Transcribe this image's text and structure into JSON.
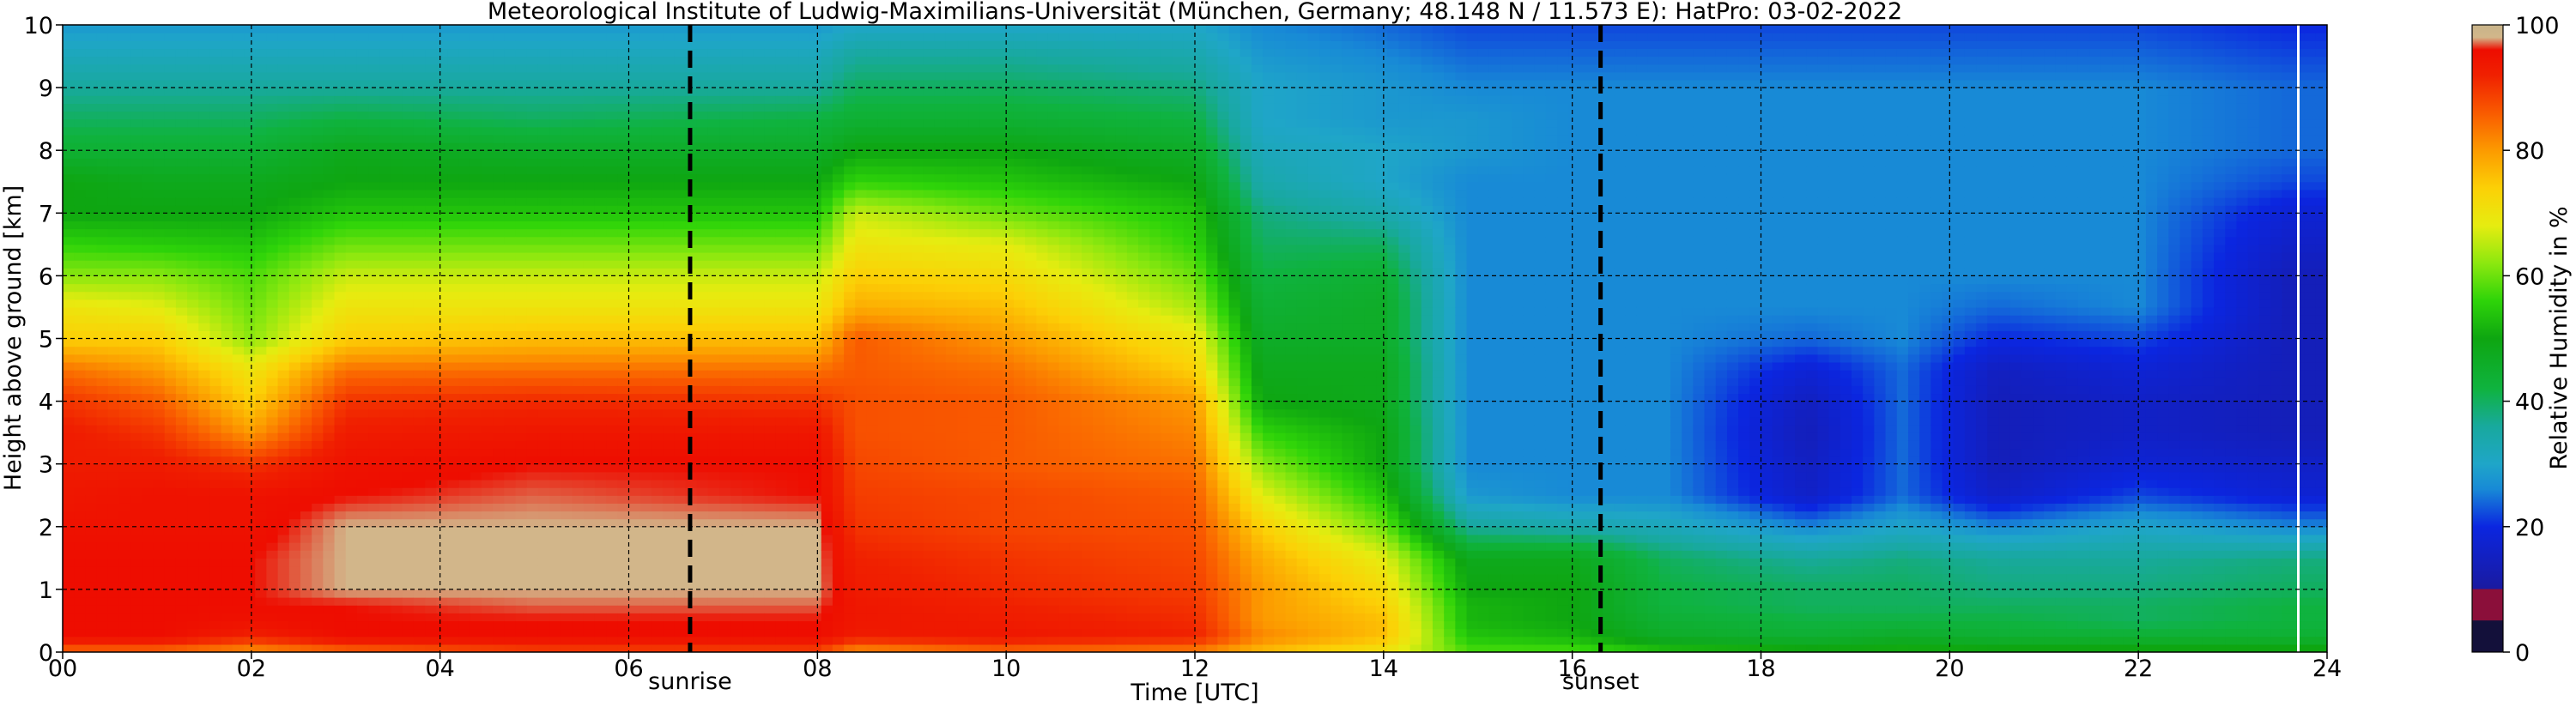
{
  "chart_data": {
    "type": "heatmap",
    "title": "Meteorological Institute of Ludwig-Maximilians-Universität (München, Germany; 48.148 N / 11.573 E):    HatPro: 03-02-2022",
    "xlabel": "Time [UTC]",
    "ylabel": "Height above ground [km]",
    "xlim": [
      0,
      24
    ],
    "ylim": [
      0,
      10
    ],
    "x_ticks": [
      "00",
      "02",
      "04",
      "06",
      "08",
      "10",
      "12",
      "14",
      "16",
      "18",
      "20",
      "22",
      "24"
    ],
    "y_ticks": [
      "0",
      "1",
      "2",
      "3",
      "4",
      "5",
      "6",
      "7",
      "8",
      "9",
      "10"
    ],
    "grid": true,
    "colorbar": {
      "label": "Relative Humidity in %",
      "range": [
        0,
        100
      ],
      "ticks": [
        "0",
        "20",
        "40",
        "60",
        "80",
        "100"
      ]
    },
    "annotations": [
      {
        "name": "sunrise",
        "label": "sunrise",
        "x": 6.65
      },
      {
        "name": "sunset",
        "label": "sunset",
        "x": 16.3
      }
    ],
    "heights_km": [
      0,
      0.25,
      0.5,
      0.75,
      1,
      1.5,
      2,
      2.5,
      3,
      3.5,
      4,
      4.5,
      5,
      5.5,
      6,
      6.5,
      7,
      7.5,
      8,
      8.5,
      9,
      9.5,
      10
    ],
    "profiles": [
      {
        "t": 0.0,
        "rh": [
          84,
          96,
          96,
          96,
          96,
          96,
          95,
          94,
          93,
          93,
          90,
          84,
          74,
          70,
          62,
          56,
          50,
          50,
          44,
          40,
          36,
          32,
          28
        ]
      },
      {
        "t": 1.0,
        "rh": [
          84,
          96,
          96,
          96,
          96,
          96,
          95,
          95,
          93,
          90,
          86,
          80,
          74,
          68,
          62,
          55,
          50,
          48,
          44,
          40,
          36,
          32,
          28
        ]
      },
      {
        "t": 2.0,
        "rh": [
          80,
          92,
          95,
          96,
          96,
          96,
          95,
          95,
          90,
          80,
          74,
          70,
          62,
          60,
          58,
          54,
          50,
          48,
          44,
          40,
          36,
          32,
          28
        ]
      },
      {
        "t": 3.0,
        "rh": [
          84,
          96,
          96,
          96,
          98,
          98,
          98,
          96,
          95,
          93,
          90,
          84,
          74,
          70,
          66,
          60,
          54,
          50,
          48,
          42,
          36,
          32,
          28
        ]
      },
      {
        "t": 5.0,
        "rh": [
          88,
          96,
          96,
          97,
          98,
          98,
          98,
          97,
          96,
          94,
          91,
          84,
          76,
          70,
          66,
          60,
          54,
          50,
          46,
          40,
          36,
          32,
          28
        ]
      },
      {
        "t": 8.0,
        "rh": [
          88,
          96,
          96,
          97,
          98,
          98,
          98,
          96,
          96,
          94,
          90,
          84,
          76,
          70,
          66,
          60,
          54,
          50,
          46,
          42,
          36,
          32,
          28
        ]
      },
      {
        "t": 8.4,
        "rh": [
          80,
          93,
          94,
          94,
          93,
          92,
          90,
          89,
          88,
          87,
          87,
          86,
          86,
          78,
          74,
          70,
          66,
          56,
          50,
          44,
          40,
          36,
          30
        ]
      },
      {
        "t": 10.0,
        "rh": [
          84,
          94,
          93,
          92,
          91,
          90,
          88,
          88,
          86,
          86,
          86,
          84,
          80,
          76,
          72,
          68,
          60,
          54,
          50,
          44,
          40,
          36,
          30
        ]
      },
      {
        "t": 12.0,
        "rh": [
          82,
          92,
          91,
          90,
          89,
          88,
          87,
          86,
          84,
          82,
          80,
          74,
          70,
          64,
          60,
          56,
          54,
          50,
          46,
          42,
          38,
          34,
          30
        ]
      },
      {
        "t": 12.7,
        "rh": [
          76,
          82,
          80,
          80,
          80,
          78,
          74,
          68,
          62,
          56,
          50,
          48,
          46,
          44,
          42,
          40,
          38,
          34,
          32,
          30,
          30,
          28,
          26
        ]
      },
      {
        "t": 14.0,
        "rh": [
          70,
          76,
          76,
          74,
          72,
          68,
          60,
          54,
          50,
          50,
          48,
          48,
          46,
          46,
          44,
          40,
          34,
          30,
          30,
          28,
          28,
          26,
          24
        ]
      },
      {
        "t": 14.9,
        "rh": [
          58,
          54,
          52,
          52,
          50,
          48,
          36,
          28,
          26,
          26,
          26,
          26,
          26,
          26,
          26,
          26,
          26,
          26,
          28,
          28,
          26,
          24,
          22
        ]
      },
      {
        "t": 16.0,
        "rh": [
          58,
          52,
          50,
          50,
          50,
          48,
          34,
          26,
          26,
          26,
          26,
          26,
          26,
          26,
          26,
          26,
          26,
          26,
          26,
          26,
          26,
          24,
          22
        ]
      },
      {
        "t": 17.0,
        "rh": [
          54,
          46,
          44,
          42,
          42,
          40,
          32,
          26,
          26,
          26,
          26,
          26,
          26,
          26,
          26,
          26,
          26,
          26,
          26,
          26,
          26,
          24,
          22
        ]
      },
      {
        "t": 18.5,
        "rh": [
          52,
          44,
          42,
          40,
          40,
          36,
          26,
          16,
          15,
          14,
          15,
          18,
          24,
          26,
          26,
          26,
          26,
          26,
          26,
          26,
          26,
          24,
          22
        ]
      },
      {
        "t": 19.5,
        "rh": [
          52,
          46,
          42,
          40,
          40,
          38,
          30,
          24,
          24,
          24,
          24,
          24,
          26,
          26,
          26,
          26,
          26,
          26,
          26,
          26,
          26,
          24,
          22
        ]
      },
      {
        "t": 20.5,
        "rh": [
          52,
          44,
          42,
          40,
          38,
          36,
          26,
          16,
          14,
          14,
          14,
          15,
          20,
          24,
          26,
          26,
          26,
          26,
          26,
          26,
          26,
          24,
          22
        ]
      },
      {
        "t": 22.0,
        "rh": [
          52,
          44,
          40,
          40,
          38,
          36,
          30,
          22,
          18,
          16,
          16,
          18,
          22,
          26,
          26,
          26,
          26,
          26,
          26,
          26,
          26,
          24,
          22
        ]
      },
      {
        "t": 23.6,
        "rh": [
          52,
          44,
          42,
          42,
          40,
          38,
          26,
          18,
          16,
          14,
          14,
          14,
          14,
          14,
          14,
          16,
          18,
          22,
          24,
          24,
          24,
          22,
          20
        ]
      },
      {
        "t": 24.0,
        "rh": [
          52,
          44,
          42,
          42,
          40,
          38,
          26,
          18,
          16,
          14,
          14,
          14,
          14,
          14,
          14,
          16,
          18,
          22,
          24,
          24,
          24,
          22,
          20
        ]
      }
    ],
    "colormap": [
      {
        "v": 0,
        "color": "#13103a"
      },
      {
        "v": 5,
        "color": "#13103a"
      },
      {
        "v": 5.1,
        "color": "#8b0f3a"
      },
      {
        "v": 10,
        "color": "#8b0f3a"
      },
      {
        "v": 10.1,
        "color": "#1a1aa0"
      },
      {
        "v": 20,
        "color": "#0b26e0"
      },
      {
        "v": 26,
        "color": "#188ad6"
      },
      {
        "v": 30,
        "color": "#1fa6c8"
      },
      {
        "v": 36,
        "color": "#18a99d"
      },
      {
        "v": 42,
        "color": "#0fb33f"
      },
      {
        "v": 50,
        "color": "#0ea611"
      },
      {
        "v": 56,
        "color": "#2ed409"
      },
      {
        "v": 62,
        "color": "#8ce80f"
      },
      {
        "v": 68,
        "color": "#e6ec10"
      },
      {
        "v": 74,
        "color": "#fcd006"
      },
      {
        "v": 80,
        "color": "#fc9a00"
      },
      {
        "v": 86,
        "color": "#f95a00"
      },
      {
        "v": 92,
        "color": "#f02000"
      },
      {
        "v": 96,
        "color": "#ee0d00"
      },
      {
        "v": 98,
        "color": "#d2b68a"
      },
      {
        "v": 100,
        "color": "#c8b48a"
      }
    ]
  }
}
